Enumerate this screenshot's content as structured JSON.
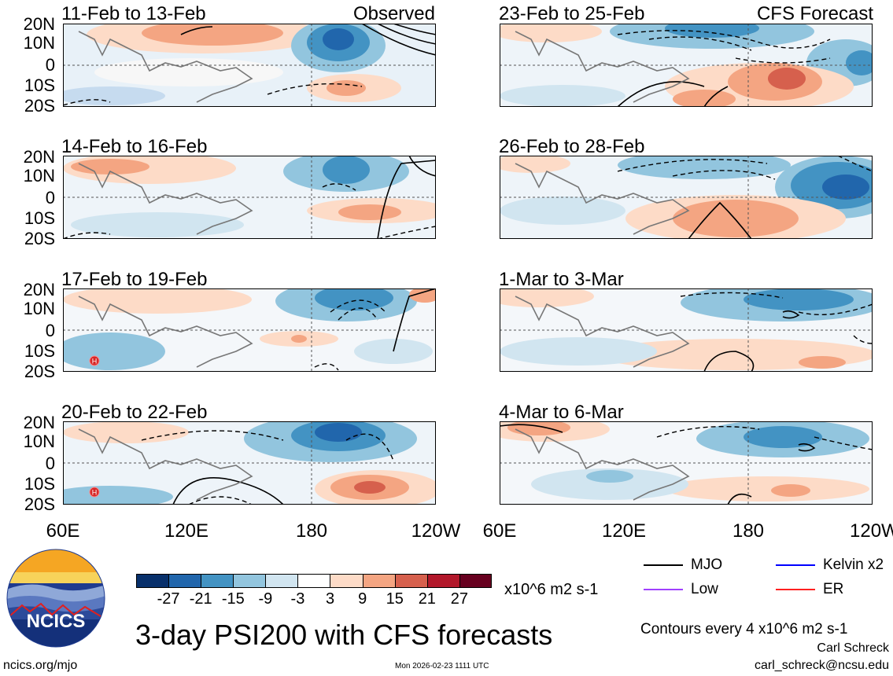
{
  "panels": [
    {
      "title": "11-Feb to 13-Feb",
      "label": "Observed"
    },
    {
      "title": "14-Feb to 16-Feb",
      "label": ""
    },
    {
      "title": "17-Feb to 19-Feb",
      "label": ""
    },
    {
      "title": "20-Feb to 22-Feb",
      "label": ""
    },
    {
      "title": "23-Feb to 25-Feb",
      "label": "CFS Forecast"
    },
    {
      "title": "26-Feb to 28-Feb",
      "label": ""
    },
    {
      "title": "1-Mar to 3-Mar",
      "label": ""
    },
    {
      "title": "4-Mar to 6-Mar",
      "label": ""
    }
  ],
  "lat_labels": [
    "20N",
    "10N",
    "0",
    "10S",
    "20S"
  ],
  "lon_labels": [
    "60E",
    "120E",
    "180",
    "120W"
  ],
  "lon_labels_right": [
    "60E",
    "120E",
    "180",
    "120W"
  ],
  "colorbar": {
    "colors": [
      "#08306b",
      "#2166ac",
      "#4393c3",
      "#92c5de",
      "#d1e5f0",
      "#ffffff",
      "#fddbc7",
      "#f4a582",
      "#d6604d",
      "#b2182b",
      "#67001f"
    ],
    "ticks": [
      "-27",
      "-21",
      "-15",
      "-9",
      "-3",
      "3",
      "9",
      "15",
      "21",
      "27"
    ],
    "units": "x10^6 m2 s-1"
  },
  "title": "3-day PSI200 with CFS forecasts",
  "legend": {
    "items": [
      {
        "label": "MJO",
        "color": "#000000"
      },
      {
        "label": "Kelvin x2",
        "color": "#0000ff"
      },
      {
        "label": "Low",
        "color": "#a040ff"
      },
      {
        "label": "ER",
        "color": "#ff2020"
      }
    ],
    "contour_note": "Contours every 4 x10^6 m2 s-1"
  },
  "logo": {
    "text": "NCICS"
  },
  "footer": {
    "url": "ncics.org/mjo",
    "timestamp": "Mon 2026-02-23 1111 UTC",
    "author": "Carl Schreck",
    "email": "carl_schreck@ncsu.edu"
  },
  "highs": [
    "H",
    "H"
  ]
}
